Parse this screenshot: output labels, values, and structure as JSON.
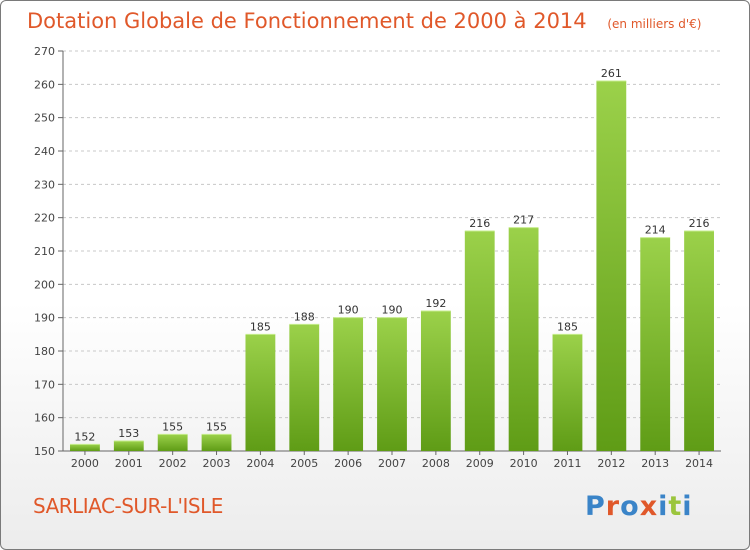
{
  "header": {
    "title": "Dotation Globale de Fonctionnement de 2000 à 2014",
    "unit": "(en milliers d'€)"
  },
  "footer": {
    "commune": "SARLIAC-SUR-L'ISLE",
    "logo": "Proxiti",
    "logo_colors": [
      "#3a84c8",
      "#e0582a",
      "#3a84c8",
      "#e0582a",
      "#3a84c8",
      "#9bc53d",
      "#3a84c8"
    ]
  },
  "colors": {
    "bar_light": "#9bd14a",
    "bar_dark": "#5f9c16",
    "title": "#e0582a",
    "grid": "#c8c8c8"
  },
  "chart_data": {
    "type": "bar",
    "categories": [
      "2000",
      "2001",
      "2002",
      "2003",
      "2004",
      "2005",
      "2006",
      "2007",
      "2008",
      "2009",
      "2010",
      "2011",
      "2012",
      "2013",
      "2014"
    ],
    "values": [
      152,
      153,
      155,
      155,
      185,
      188,
      190,
      190,
      192,
      216,
      217,
      185,
      261,
      214,
      216
    ],
    "title": "Dotation Globale de Fonctionnement de 2000 à 2014",
    "subtitle": "(en milliers d'€)",
    "xlabel": "",
    "ylabel": "",
    "ylim": [
      150,
      270
    ],
    "yticks": [
      150,
      160,
      170,
      180,
      190,
      200,
      210,
      220,
      230,
      240,
      250,
      260,
      270
    ],
    "grid": true,
    "legend": "none"
  }
}
